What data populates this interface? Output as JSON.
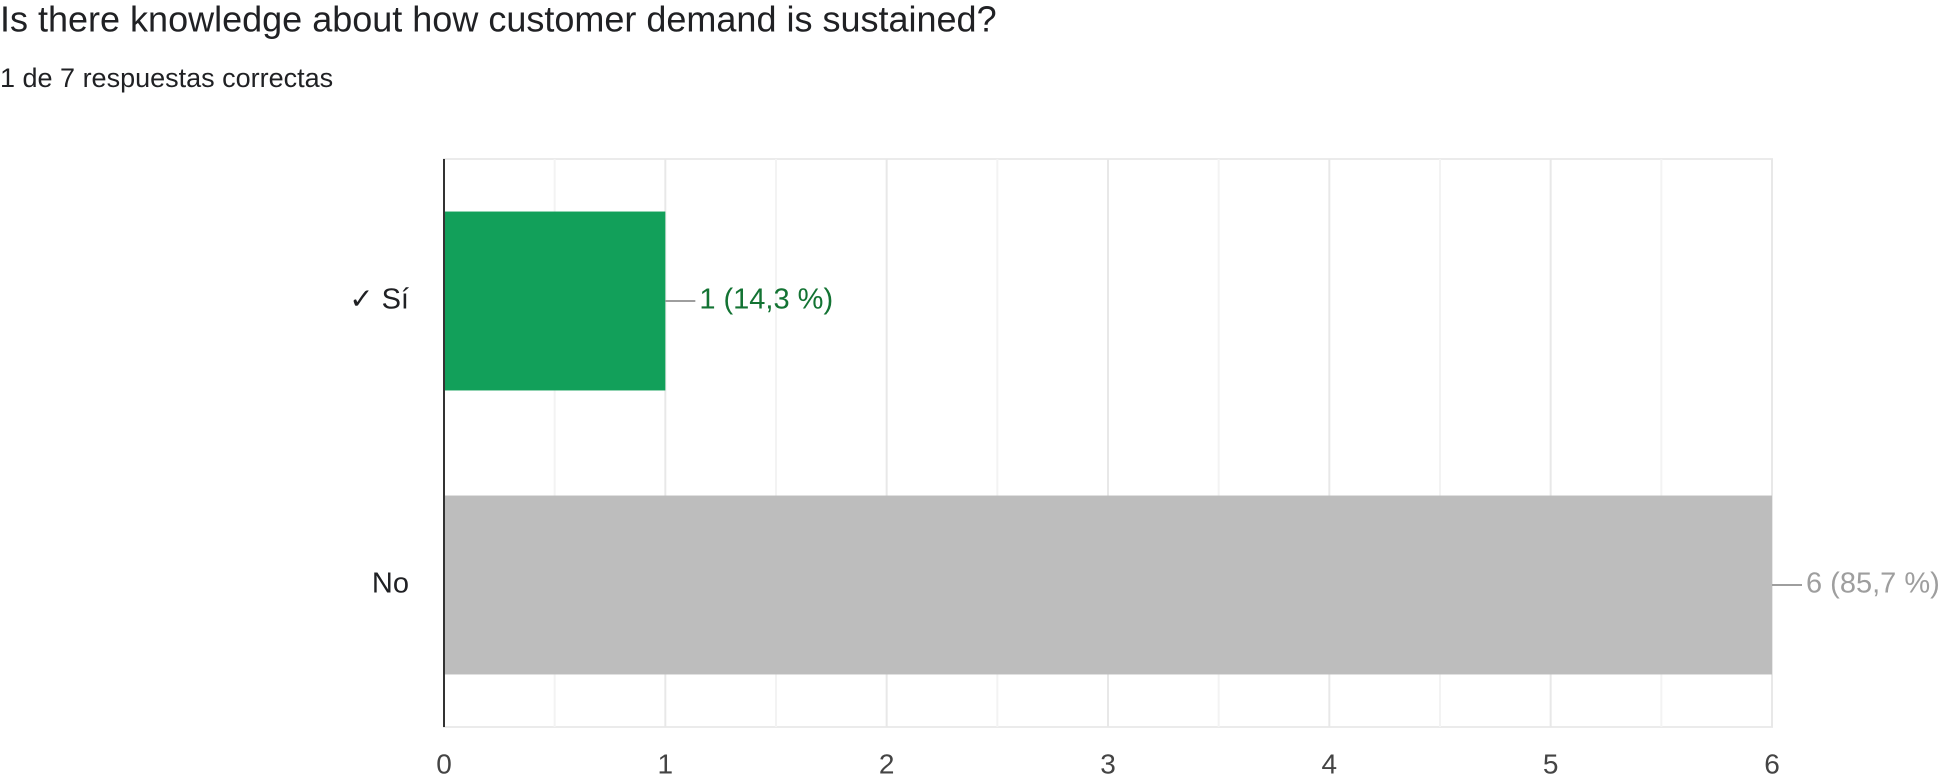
{
  "chart_data": {
    "type": "hbar",
    "title": "Is there knowledge about how customer demand is sustained?",
    "subtitle": "1 de 7 respuestas correctas",
    "categories": [
      "✓ Sí",
      "No"
    ],
    "values": [
      1,
      6
    ],
    "value_labels": [
      "1 (14,3 %)",
      "6 (85,7 %)"
    ],
    "colors": [
      "#12a05a",
      "#bdbdbd"
    ],
    "label_colors": [
      "#137333",
      "#9e9e9e"
    ],
    "xlim": [
      0,
      6
    ],
    "xticks": [
      0,
      1,
      2,
      3,
      4,
      5,
      6
    ],
    "grid": true,
    "minor_grid": true
  }
}
